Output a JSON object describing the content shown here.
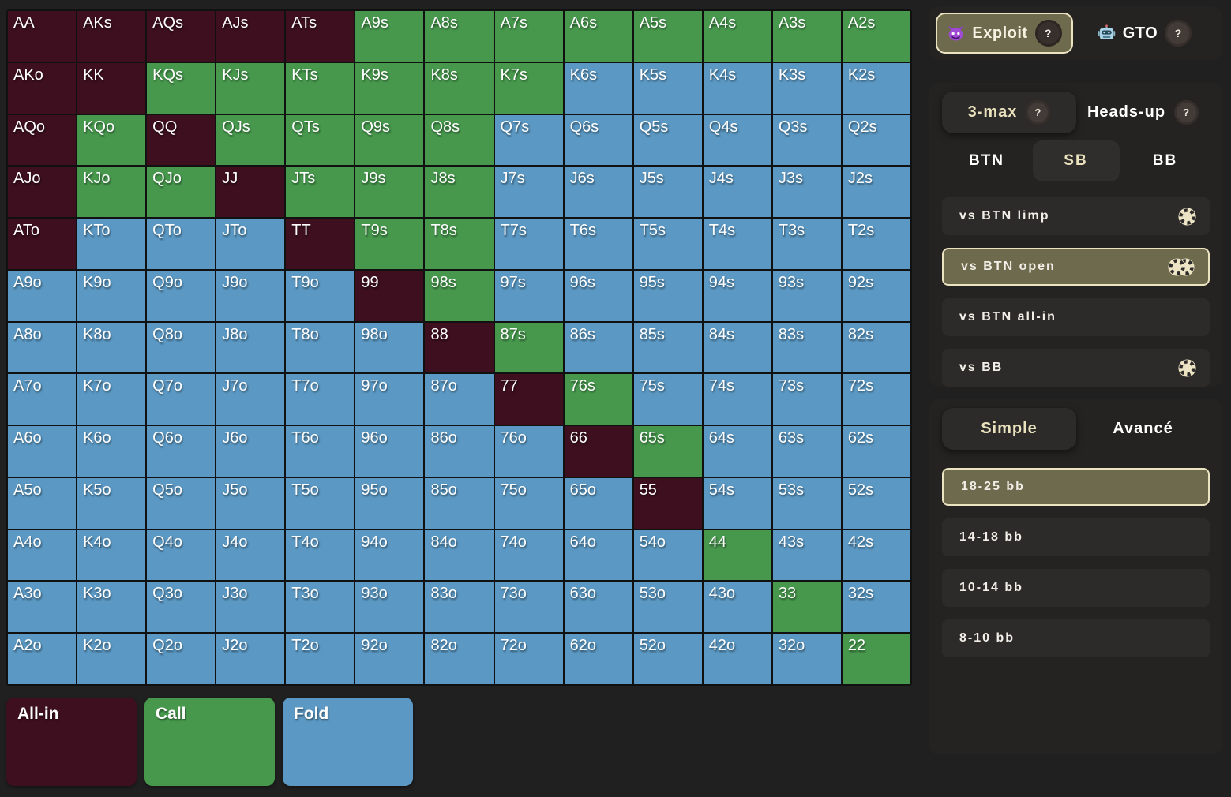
{
  "colors": {
    "allin": "#3d0f1f",
    "call": "#47984d",
    "fold": "#5b98c3",
    "selected_bg": "#6e6a4d",
    "selected_border": "#ece3c1",
    "cream_text": "#eae1bd"
  },
  "help_label": "?",
  "mode_toggle": {
    "exploit_label": "Exploit",
    "gto_label": "GTO",
    "selected": "Exploit"
  },
  "format_tabs": {
    "three_max_label": "3-max",
    "heads_up_label": "Heads-up",
    "selected": "3-max"
  },
  "positions": {
    "options": [
      "BTN",
      "SB",
      "BB"
    ],
    "selected": "SB"
  },
  "scenarios": {
    "items": [
      {
        "label": "vs BTN limp",
        "chips": 1,
        "selected": false
      },
      {
        "label": "vs BTN open",
        "chips": 2,
        "selected": true
      },
      {
        "label": "vs BTN all-in",
        "chips": 0,
        "selected": false
      },
      {
        "label": "vs BB",
        "chips": 1,
        "selected": false
      }
    ]
  },
  "complexity_tabs": {
    "simple_label": "Simple",
    "advanced_label": "Avancé",
    "selected": "Simple"
  },
  "stack_depths": {
    "items": [
      {
        "label": "18-25 bb",
        "selected": true
      },
      {
        "label": "14-18 bb",
        "selected": false
      },
      {
        "label": "10-14 bb",
        "selected": false
      },
      {
        "label": "8-10 bb",
        "selected": false
      }
    ]
  },
  "legend": {
    "items": [
      {
        "label": "All-in",
        "action": "allin"
      },
      {
        "label": "Call",
        "action": "call"
      },
      {
        "label": "Fold",
        "action": "fold"
      }
    ]
  },
  "range_grid": {
    "rows": [
      [
        {
          "hand": "AA",
          "action": "allin"
        },
        {
          "hand": "AKs",
          "action": "allin"
        },
        {
          "hand": "AQs",
          "action": "allin"
        },
        {
          "hand": "AJs",
          "action": "allin"
        },
        {
          "hand": "ATs",
          "action": "allin"
        },
        {
          "hand": "A9s",
          "action": "call"
        },
        {
          "hand": "A8s",
          "action": "call"
        },
        {
          "hand": "A7s",
          "action": "call"
        },
        {
          "hand": "A6s",
          "action": "call"
        },
        {
          "hand": "A5s",
          "action": "call"
        },
        {
          "hand": "A4s",
          "action": "call"
        },
        {
          "hand": "A3s",
          "action": "call"
        },
        {
          "hand": "A2s",
          "action": "call"
        }
      ],
      [
        {
          "hand": "AKo",
          "action": "allin"
        },
        {
          "hand": "KK",
          "action": "allin"
        },
        {
          "hand": "KQs",
          "action": "call"
        },
        {
          "hand": "KJs",
          "action": "call"
        },
        {
          "hand": "KTs",
          "action": "call"
        },
        {
          "hand": "K9s",
          "action": "call"
        },
        {
          "hand": "K8s",
          "action": "call"
        },
        {
          "hand": "K7s",
          "action": "call"
        },
        {
          "hand": "K6s",
          "action": "fold"
        },
        {
          "hand": "K5s",
          "action": "fold"
        },
        {
          "hand": "K4s",
          "action": "fold"
        },
        {
          "hand": "K3s",
          "action": "fold"
        },
        {
          "hand": "K2s",
          "action": "fold"
        }
      ],
      [
        {
          "hand": "AQo",
          "action": "allin"
        },
        {
          "hand": "KQo",
          "action": "call"
        },
        {
          "hand": "QQ",
          "action": "allin"
        },
        {
          "hand": "QJs",
          "action": "call"
        },
        {
          "hand": "QTs",
          "action": "call"
        },
        {
          "hand": "Q9s",
          "action": "call"
        },
        {
          "hand": "Q8s",
          "action": "call"
        },
        {
          "hand": "Q7s",
          "action": "fold"
        },
        {
          "hand": "Q6s",
          "action": "fold"
        },
        {
          "hand": "Q5s",
          "action": "fold"
        },
        {
          "hand": "Q4s",
          "action": "fold"
        },
        {
          "hand": "Q3s",
          "action": "fold"
        },
        {
          "hand": "Q2s",
          "action": "fold"
        }
      ],
      [
        {
          "hand": "AJo",
          "action": "allin"
        },
        {
          "hand": "KJo",
          "action": "call"
        },
        {
          "hand": "QJo",
          "action": "call"
        },
        {
          "hand": "JJ",
          "action": "allin"
        },
        {
          "hand": "JTs",
          "action": "call"
        },
        {
          "hand": "J9s",
          "action": "call"
        },
        {
          "hand": "J8s",
          "action": "call"
        },
        {
          "hand": "J7s",
          "action": "fold"
        },
        {
          "hand": "J6s",
          "action": "fold"
        },
        {
          "hand": "J5s",
          "action": "fold"
        },
        {
          "hand": "J4s",
          "action": "fold"
        },
        {
          "hand": "J3s",
          "action": "fold"
        },
        {
          "hand": "J2s",
          "action": "fold"
        }
      ],
      [
        {
          "hand": "ATo",
          "action": "allin"
        },
        {
          "hand": "KTo",
          "action": "fold"
        },
        {
          "hand": "QTo",
          "action": "fold"
        },
        {
          "hand": "JTo",
          "action": "fold"
        },
        {
          "hand": "TT",
          "action": "allin"
        },
        {
          "hand": "T9s",
          "action": "call"
        },
        {
          "hand": "T8s",
          "action": "call"
        },
        {
          "hand": "T7s",
          "action": "fold"
        },
        {
          "hand": "T6s",
          "action": "fold"
        },
        {
          "hand": "T5s",
          "action": "fold"
        },
        {
          "hand": "T4s",
          "action": "fold"
        },
        {
          "hand": "T3s",
          "action": "fold"
        },
        {
          "hand": "T2s",
          "action": "fold"
        }
      ],
      [
        {
          "hand": "A9o",
          "action": "fold"
        },
        {
          "hand": "K9o",
          "action": "fold"
        },
        {
          "hand": "Q9o",
          "action": "fold"
        },
        {
          "hand": "J9o",
          "action": "fold"
        },
        {
          "hand": "T9o",
          "action": "fold"
        },
        {
          "hand": "99",
          "action": "allin"
        },
        {
          "hand": "98s",
          "action": "call"
        },
        {
          "hand": "97s",
          "action": "fold"
        },
        {
          "hand": "96s",
          "action": "fold"
        },
        {
          "hand": "95s",
          "action": "fold"
        },
        {
          "hand": "94s",
          "action": "fold"
        },
        {
          "hand": "93s",
          "action": "fold"
        },
        {
          "hand": "92s",
          "action": "fold"
        }
      ],
      [
        {
          "hand": "A8o",
          "action": "fold"
        },
        {
          "hand": "K8o",
          "action": "fold"
        },
        {
          "hand": "Q8o",
          "action": "fold"
        },
        {
          "hand": "J8o",
          "action": "fold"
        },
        {
          "hand": "T8o",
          "action": "fold"
        },
        {
          "hand": "98o",
          "action": "fold"
        },
        {
          "hand": "88",
          "action": "allin"
        },
        {
          "hand": "87s",
          "action": "call"
        },
        {
          "hand": "86s",
          "action": "fold"
        },
        {
          "hand": "85s",
          "action": "fold"
        },
        {
          "hand": "84s",
          "action": "fold"
        },
        {
          "hand": "83s",
          "action": "fold"
        },
        {
          "hand": "82s",
          "action": "fold"
        }
      ],
      [
        {
          "hand": "A7o",
          "action": "fold"
        },
        {
          "hand": "K7o",
          "action": "fold"
        },
        {
          "hand": "Q7o",
          "action": "fold"
        },
        {
          "hand": "J7o",
          "action": "fold"
        },
        {
          "hand": "T7o",
          "action": "fold"
        },
        {
          "hand": "97o",
          "action": "fold"
        },
        {
          "hand": "87o",
          "action": "fold"
        },
        {
          "hand": "77",
          "action": "allin"
        },
        {
          "hand": "76s",
          "action": "call"
        },
        {
          "hand": "75s",
          "action": "fold"
        },
        {
          "hand": "74s",
          "action": "fold"
        },
        {
          "hand": "73s",
          "action": "fold"
        },
        {
          "hand": "72s",
          "action": "fold"
        }
      ],
      [
        {
          "hand": "A6o",
          "action": "fold"
        },
        {
          "hand": "K6o",
          "action": "fold"
        },
        {
          "hand": "Q6o",
          "action": "fold"
        },
        {
          "hand": "J6o",
          "action": "fold"
        },
        {
          "hand": "T6o",
          "action": "fold"
        },
        {
          "hand": "96o",
          "action": "fold"
        },
        {
          "hand": "86o",
          "action": "fold"
        },
        {
          "hand": "76o",
          "action": "fold"
        },
        {
          "hand": "66",
          "action": "allin"
        },
        {
          "hand": "65s",
          "action": "call"
        },
        {
          "hand": "64s",
          "action": "fold"
        },
        {
          "hand": "63s",
          "action": "fold"
        },
        {
          "hand": "62s",
          "action": "fold"
        }
      ],
      [
        {
          "hand": "A5o",
          "action": "fold"
        },
        {
          "hand": "K5o",
          "action": "fold"
        },
        {
          "hand": "Q5o",
          "action": "fold"
        },
        {
          "hand": "J5o",
          "action": "fold"
        },
        {
          "hand": "T5o",
          "action": "fold"
        },
        {
          "hand": "95o",
          "action": "fold"
        },
        {
          "hand": "85o",
          "action": "fold"
        },
        {
          "hand": "75o",
          "action": "fold"
        },
        {
          "hand": "65o",
          "action": "fold"
        },
        {
          "hand": "55",
          "action": "allin"
        },
        {
          "hand": "54s",
          "action": "fold"
        },
        {
          "hand": "53s",
          "action": "fold"
        },
        {
          "hand": "52s",
          "action": "fold"
        }
      ],
      [
        {
          "hand": "A4o",
          "action": "fold"
        },
        {
          "hand": "K4o",
          "action": "fold"
        },
        {
          "hand": "Q4o",
          "action": "fold"
        },
        {
          "hand": "J4o",
          "action": "fold"
        },
        {
          "hand": "T4o",
          "action": "fold"
        },
        {
          "hand": "94o",
          "action": "fold"
        },
        {
          "hand": "84o",
          "action": "fold"
        },
        {
          "hand": "74o",
          "action": "fold"
        },
        {
          "hand": "64o",
          "action": "fold"
        },
        {
          "hand": "54o",
          "action": "fold"
        },
        {
          "hand": "44",
          "action": "call"
        },
        {
          "hand": "43s",
          "action": "fold"
        },
        {
          "hand": "42s",
          "action": "fold"
        }
      ],
      [
        {
          "hand": "A3o",
          "action": "fold"
        },
        {
          "hand": "K3o",
          "action": "fold"
        },
        {
          "hand": "Q3o",
          "action": "fold"
        },
        {
          "hand": "J3o",
          "action": "fold"
        },
        {
          "hand": "T3o",
          "action": "fold"
        },
        {
          "hand": "93o",
          "action": "fold"
        },
        {
          "hand": "83o",
          "action": "fold"
        },
        {
          "hand": "73o",
          "action": "fold"
        },
        {
          "hand": "63o",
          "action": "fold"
        },
        {
          "hand": "53o",
          "action": "fold"
        },
        {
          "hand": "43o",
          "action": "fold"
        },
        {
          "hand": "33",
          "action": "call"
        },
        {
          "hand": "32s",
          "action": "fold"
        }
      ],
      [
        {
          "hand": "A2o",
          "action": "fold"
        },
        {
          "hand": "K2o",
          "action": "fold"
        },
        {
          "hand": "Q2o",
          "action": "fold"
        },
        {
          "hand": "J2o",
          "action": "fold"
        },
        {
          "hand": "T2o",
          "action": "fold"
        },
        {
          "hand": "92o",
          "action": "fold"
        },
        {
          "hand": "82o",
          "action": "fold"
        },
        {
          "hand": "72o",
          "action": "fold"
        },
        {
          "hand": "62o",
          "action": "fold"
        },
        {
          "hand": "52o",
          "action": "fold"
        },
        {
          "hand": "42o",
          "action": "fold"
        },
        {
          "hand": "32o",
          "action": "fold"
        },
        {
          "hand": "22",
          "action": "call"
        }
      ]
    ]
  }
}
